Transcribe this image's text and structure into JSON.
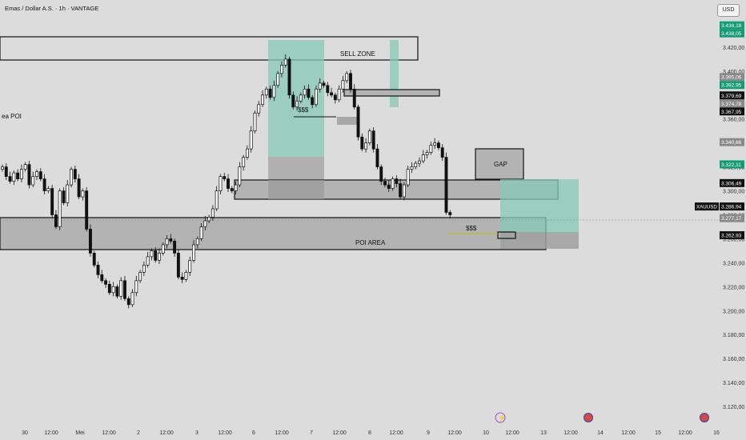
{
  "header": {
    "title": "Emas / Dollar A.S. · 1h · VANTAGE",
    "currency_button": "USD"
  },
  "colors": {
    "background": "#dcdcdc",
    "candle_body": "#ffffff",
    "candle_outline": "#111111",
    "zone_fill": "#b3b3b3",
    "zone_dark_fill": "#a6a6a6",
    "teal_fill": "#86c9b5",
    "teal_label": "#129b74",
    "dark_label": "#111111",
    "gray_label": "#8a8a8a",
    "axis_text": "#333333"
  },
  "chart_data": {
    "type": "candlestick",
    "symbol": "XAUUSD",
    "ylim": [
      3110,
      3450
    ],
    "y_ticks": [
      "3.420,00",
      "3.400,00",
      "3.380,00",
      "3.360,00",
      "3.340,00",
      "3.320,00",
      "3.300,00",
      "3.280,00",
      "3.260,00",
      "3.240,00",
      "3.220,00",
      "3.200,00",
      "3.180,00",
      "3.160,00",
      "3.140,00",
      "3.120,00"
    ],
    "x_ticks": [
      "30",
      "12:00",
      "Mei",
      "12:00",
      "2",
      "12:00",
      "3",
      "12:00",
      "6",
      "12:00",
      "7",
      "12:00",
      "8",
      "12:00",
      "9",
      "12:00",
      "10",
      "12:00",
      "13",
      "12:00",
      "14",
      "12:00",
      "15",
      "12:00",
      "16"
    ],
    "price_labels": [
      {
        "value": 3438.18,
        "text": "3.438,18",
        "style": "teal"
      },
      {
        "value": 3438.05,
        "text": "3.438,05",
        "style": "teal"
      },
      {
        "value": 3395.06,
        "text": "3.395,06",
        "style": "gray"
      },
      {
        "value": 3392.95,
        "text": "3.392,95",
        "style": "teal"
      },
      {
        "value": 3379.69,
        "text": "3.379,69",
        "style": "dark"
      },
      {
        "value": 3374.78,
        "text": "3.374,78",
        "style": "gray"
      },
      {
        "value": 3367.95,
        "text": "3.367,95",
        "style": "dark"
      },
      {
        "value": 3340.66,
        "text": "3.340,66",
        "style": "gray"
      },
      {
        "value": 3322.11,
        "text": "3.322,11",
        "style": "teal"
      },
      {
        "value": 3306.49,
        "text": "3.306,49",
        "style": "dark"
      },
      {
        "value": 3286.94,
        "text": "3.286,94",
        "style": "dark"
      },
      {
        "value": 3277.17,
        "text": "3.277,17",
        "style": "gray"
      },
      {
        "value": 3262.93,
        "text": "3.262,93",
        "style": "dark"
      }
    ],
    "current_price": {
      "symbol": "XAUUSD",
      "value": 3286.94
    },
    "annotations": [
      "SELL ZONE",
      "$$$",
      "GAP",
      "$$$",
      "POI AREA",
      "ea POI"
    ],
    "closes": [
      3320,
      3312,
      3308,
      3315,
      3310,
      3318,
      3322,
      3305,
      3312,
      3316,
      3310,
      3300,
      3302,
      3280,
      3270,
      3300,
      3290,
      3305,
      3318,
      3310,
      3295,
      3300,
      3268,
      3248,
      3238,
      3230,
      3225,
      3222,
      3215,
      3220,
      3212,
      3225,
      3210,
      3205,
      3215,
      3225,
      3232,
      3238,
      3245,
      3250,
      3242,
      3248,
      3255,
      3260,
      3258,
      3248,
      3228,
      3226,
      3232,
      3242,
      3255,
      3260,
      3270,
      3275,
      3278,
      3285,
      3300,
      3312,
      3310,
      3302,
      3300,
      3305,
      3320,
      3328,
      3335,
      3350,
      3365,
      3372,
      3380,
      3385,
      3378,
      3388,
      3398,
      3405,
      3410,
      3380,
      3370,
      3375,
      3380,
      3385,
      3378,
      3372,
      3385,
      3390,
      3388,
      3382,
      3380,
      3376,
      3385,
      3392,
      3398,
      3385,
      3370,
      3345,
      3335,
      3340,
      3350,
      3335,
      3320,
      3308,
      3305,
      3302,
      3310,
      3306,
      3295,
      3305,
      3318,
      3320,
      3323,
      3325,
      3330,
      3332,
      3338,
      3340,
      3336,
      3328,
      3282,
      3280
    ]
  }
}
